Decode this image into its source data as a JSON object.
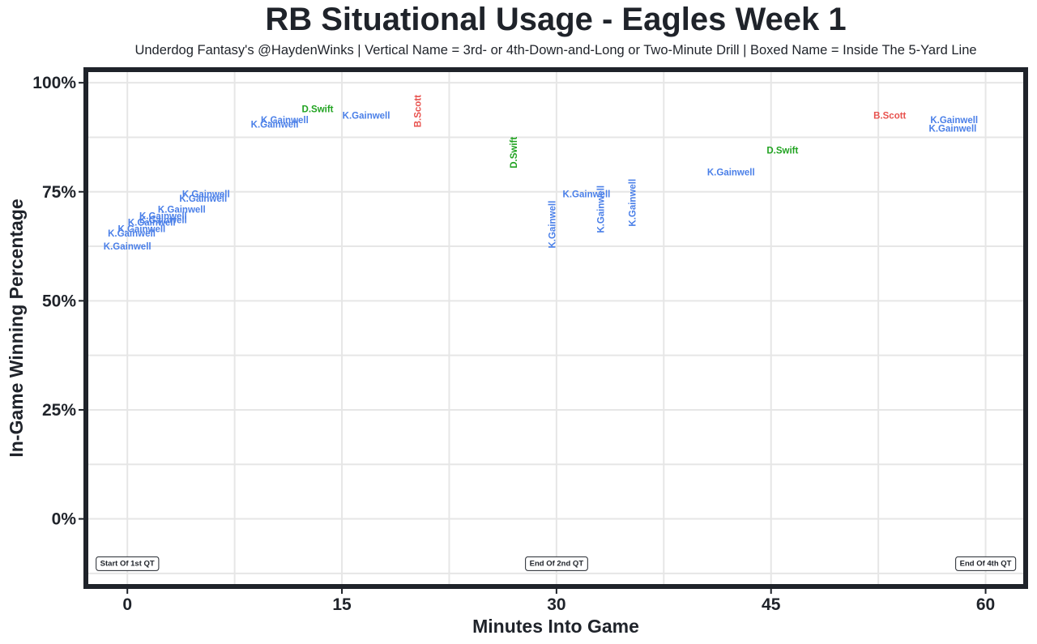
{
  "chart_data": {
    "type": "scatter",
    "title": "RB Situational Usage - Eagles Week 1",
    "subtitle": "Underdog Fantasy's @HaydenWinks | Vertical Name = 3rd- or 4th-Down-and-Long or Two-Minute Drill | Boxed Name = Inside The 5-Yard Line",
    "xlabel": "Minutes Into Game",
    "ylabel": "In-Game Winning Percentage",
    "xlim": [
      -2.9,
      62.8
    ],
    "ylim": [
      -15.5,
      103
    ],
    "x_ticks": [
      0,
      15,
      30,
      45,
      60
    ],
    "x_tick_labels": [
      "0",
      "15",
      "30",
      "45",
      "60"
    ],
    "y_ticks": [
      0,
      25,
      50,
      75,
      100
    ],
    "y_tick_labels": [
      "0%",
      "25%",
      "50%",
      "75%",
      "100%"
    ],
    "grid": true,
    "legend": "none",
    "player_colors": {
      "K.Gainwell": "#4a7fe8",
      "D.Swift": "#21a321",
      "B.Scott": "#e8534f"
    },
    "quarter_markers": [
      {
        "x": 0,
        "y": -10,
        "label": "Start Of 1st QT"
      },
      {
        "x": 30,
        "y": -10,
        "label": "End Of 2nd QT"
      },
      {
        "x": 60,
        "y": -10,
        "label": "End Of 4th QT"
      }
    ],
    "points": [
      {
        "x": 0,
        "y": 62.5,
        "player": "K.Gainwell",
        "vertical": false
      },
      {
        "x": 0.3,
        "y": 65.5,
        "player": "K.Gainwell",
        "vertical": false
      },
      {
        "x": 1,
        "y": 66.5,
        "player": "K.Gainwell",
        "vertical": false
      },
      {
        "x": 1.7,
        "y": 68,
        "player": "K.Gainwell",
        "vertical": false
      },
      {
        "x": 2.5,
        "y": 68.5,
        "player": "K.Gainwell",
        "vertical": false
      },
      {
        "x": 2.5,
        "y": 69.5,
        "player": "K.Gainwell",
        "vertical": false
      },
      {
        "x": 3.8,
        "y": 71,
        "player": "K.Gainwell",
        "vertical": false
      },
      {
        "x": 5.3,
        "y": 73.5,
        "player": "K.Gainwell",
        "vertical": false
      },
      {
        "x": 5.5,
        "y": 74.5,
        "player": "K.Gainwell",
        "vertical": false
      },
      {
        "x": 10.3,
        "y": 90.5,
        "player": "K.Gainwell",
        "vertical": false
      },
      {
        "x": 11,
        "y": 91.5,
        "player": "K.Gainwell",
        "vertical": false
      },
      {
        "x": 13.3,
        "y": 94,
        "player": "D.Swift",
        "vertical": false
      },
      {
        "x": 16.7,
        "y": 92.5,
        "player": "K.Gainwell",
        "vertical": false
      },
      {
        "x": 20.3,
        "y": 93.5,
        "player": "B.Scott",
        "vertical": true
      },
      {
        "x": 27,
        "y": 84,
        "player": "D.Swift",
        "vertical": true
      },
      {
        "x": 29.7,
        "y": 67.5,
        "player": "K.Gainwell",
        "vertical": true
      },
      {
        "x": 32.1,
        "y": 74.5,
        "player": "K.Gainwell",
        "vertical": false
      },
      {
        "x": 33.1,
        "y": 71,
        "player": "K.Gainwell",
        "vertical": true
      },
      {
        "x": 35.3,
        "y": 72.5,
        "player": "K.Gainwell",
        "vertical": true
      },
      {
        "x": 42.2,
        "y": 79.5,
        "player": "K.Gainwell",
        "vertical": false
      },
      {
        "x": 45.8,
        "y": 84.5,
        "player": "D.Swift",
        "vertical": false
      },
      {
        "x": 53.3,
        "y": 92.5,
        "player": "B.Scott",
        "vertical": false
      },
      {
        "x": 57.8,
        "y": 91.5,
        "player": "K.Gainwell",
        "vertical": false
      },
      {
        "x": 57.7,
        "y": 89.5,
        "player": "K.Gainwell",
        "vertical": false
      }
    ]
  }
}
